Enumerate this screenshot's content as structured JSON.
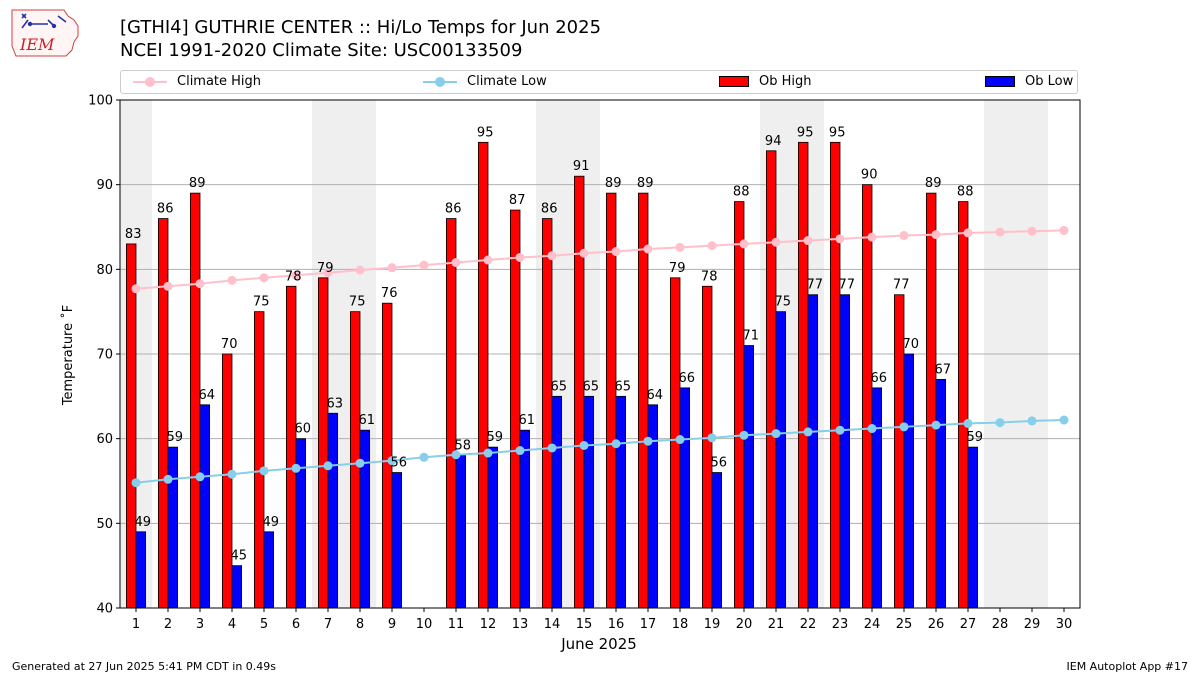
{
  "logo_text": "IEM",
  "title_line1": "[GTHI4] GUTHRIE CENTER :: Hi/Lo Temps for Jun 2025",
  "title_line2": "NCEI 1991-2020 Climate Site: USC00133509",
  "legend": [
    {
      "label": "Climate High",
      "color": "#ffc0cb",
      "kind": "line"
    },
    {
      "label": "Climate Low",
      "color": "#87ceeb",
      "kind": "line"
    },
    {
      "label": "Ob High",
      "color": "#ff0000",
      "kind": "bar"
    },
    {
      "label": "Ob Low",
      "color": "#0000ff",
      "kind": "bar"
    }
  ],
  "footer_left": "Generated at 27 Jun 2025 5:41 PM CDT in 0.49s",
  "footer_right": "IEM Autoplot App #17",
  "chart_data": {
    "type": "bar",
    "xlabel": "June 2025",
    "ylabel": "Temperature ˚F",
    "ylim": [
      40,
      100
    ],
    "yticks": [
      40,
      50,
      60,
      70,
      80,
      90,
      100
    ],
    "x": [
      1,
      2,
      3,
      4,
      5,
      6,
      7,
      8,
      9,
      10,
      11,
      12,
      13,
      14,
      15,
      16,
      17,
      18,
      19,
      20,
      21,
      22,
      23,
      24,
      25,
      26,
      27,
      28,
      29,
      30
    ],
    "weekend_days": [
      1,
      7,
      8,
      14,
      15,
      21,
      22,
      28,
      29
    ],
    "grid": true,
    "legend_position": "top",
    "series": [
      {
        "name": "Ob High",
        "type": "bar",
        "color": "#ff0000",
        "values": [
          83,
          86,
          89,
          70,
          75,
          78,
          79,
          75,
          76,
          null,
          86,
          95,
          87,
          86,
          91,
          89,
          89,
          79,
          78,
          88,
          94,
          95,
          95,
          90,
          77,
          89,
          88,
          null,
          null,
          null
        ]
      },
      {
        "name": "Ob Low",
        "type": "bar",
        "color": "#0000ff",
        "values": [
          49,
          59,
          64,
          45,
          49,
          60,
          63,
          61,
          56,
          null,
          58,
          59,
          61,
          65,
          65,
          65,
          64,
          66,
          56,
          71,
          75,
          77,
          77,
          66,
          70,
          67,
          59,
          null,
          null,
          null
        ]
      },
      {
        "name": "Climate High",
        "type": "line",
        "color": "#ffc0cb",
        "values": [
          77.7,
          78.0,
          78.3,
          78.7,
          79.0,
          79.3,
          79.6,
          79.9,
          80.2,
          80.5,
          80.8,
          81.1,
          81.4,
          81.6,
          81.9,
          82.1,
          82.4,
          82.6,
          82.8,
          83.0,
          83.2,
          83.4,
          83.6,
          83.8,
          84.0,
          84.1,
          84.3,
          84.4,
          84.5,
          84.6
        ]
      },
      {
        "name": "Climate Low",
        "type": "line",
        "color": "#87ceeb",
        "values": [
          54.8,
          55.2,
          55.5,
          55.8,
          56.2,
          56.5,
          56.8,
          57.1,
          57.4,
          57.8,
          58.1,
          58.3,
          58.6,
          58.9,
          59.2,
          59.4,
          59.7,
          59.9,
          60.1,
          60.4,
          60.6,
          60.8,
          61.0,
          61.2,
          61.4,
          61.6,
          61.8,
          61.9,
          62.1,
          62.2
        ]
      }
    ]
  }
}
